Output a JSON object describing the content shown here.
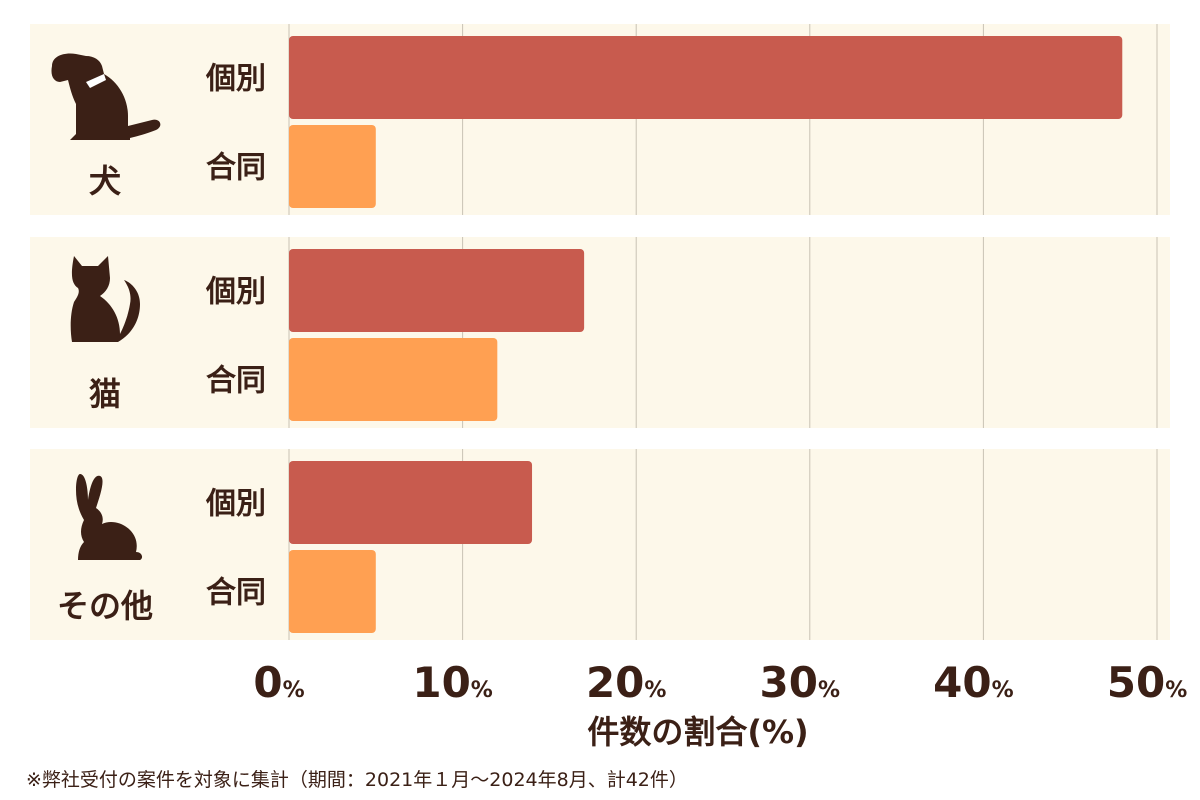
{
  "chart_data": {
    "type": "bar",
    "orientation": "horizontal",
    "groups": [
      {
        "label": "犬",
        "icon": "dog-icon",
        "bars": [
          {
            "category": "個別",
            "value": 48
          },
          {
            "category": "合同",
            "value": 5
          }
        ]
      },
      {
        "label": "猫",
        "icon": "cat-icon",
        "bars": [
          {
            "category": "個別",
            "value": 17
          },
          {
            "category": "合同",
            "value": 12
          }
        ]
      },
      {
        "label": "その他",
        "icon": "rabbit-icon",
        "bars": [
          {
            "category": "個別",
            "value": 14
          },
          {
            "category": "合同",
            "value": 5
          }
        ]
      }
    ],
    "xticks": [
      0,
      10,
      20,
      30,
      40,
      50
    ],
    "xtick_unit": "%",
    "xlim": [
      0,
      50
    ],
    "xlabel": "件数の割合(%)",
    "grid": true,
    "colors": {
      "個別": "#c85b4e",
      "合同": "#ffa052",
      "panel": "#fdf8ea",
      "grid": "#c9c2b4",
      "text": "#3b2016"
    }
  },
  "footnote": "※弊社受付の案件を対象に集計（期間：2021年１月〜2024年8月、計42件）"
}
